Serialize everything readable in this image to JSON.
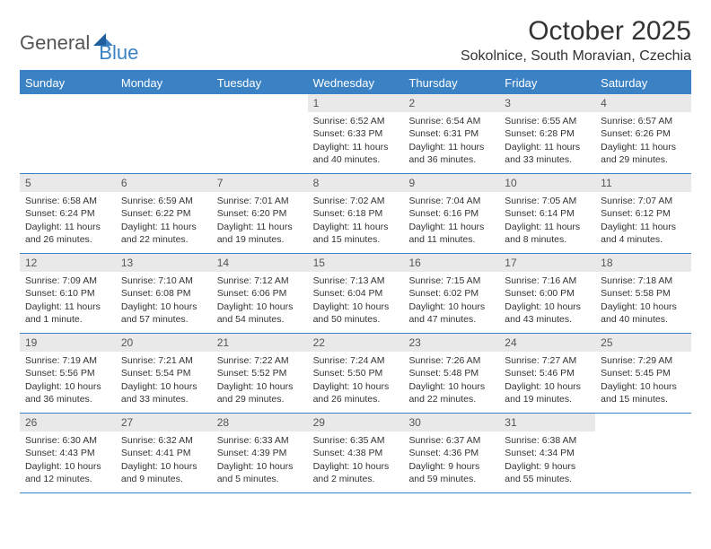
{
  "brand": {
    "part1": "General",
    "part2": "Blue"
  },
  "title": "October 2025",
  "location": "Sokolnice, South Moravian, Czechia",
  "colors": {
    "accent": "#3b82c4",
    "daynum_bg": "#e9e9e9",
    "text": "#333333",
    "bg": "#ffffff"
  },
  "typography": {
    "title_fontsize": 30,
    "location_fontsize": 16,
    "dayheader_fontsize": 13,
    "daynum_fontsize": 12,
    "cell_fontsize": 10.5
  },
  "day_names": [
    "Sunday",
    "Monday",
    "Tuesday",
    "Wednesday",
    "Thursday",
    "Friday",
    "Saturday"
  ],
  "weeks": [
    [
      {
        "n": "",
        "sr": "",
        "ss": "",
        "dl": ""
      },
      {
        "n": "",
        "sr": "",
        "ss": "",
        "dl": ""
      },
      {
        "n": "",
        "sr": "",
        "ss": "",
        "dl": ""
      },
      {
        "n": "1",
        "sr": "Sunrise: 6:52 AM",
        "ss": "Sunset: 6:33 PM",
        "dl": "Daylight: 11 hours and 40 minutes."
      },
      {
        "n": "2",
        "sr": "Sunrise: 6:54 AM",
        "ss": "Sunset: 6:31 PM",
        "dl": "Daylight: 11 hours and 36 minutes."
      },
      {
        "n": "3",
        "sr": "Sunrise: 6:55 AM",
        "ss": "Sunset: 6:28 PM",
        "dl": "Daylight: 11 hours and 33 minutes."
      },
      {
        "n": "4",
        "sr": "Sunrise: 6:57 AM",
        "ss": "Sunset: 6:26 PM",
        "dl": "Daylight: 11 hours and 29 minutes."
      }
    ],
    [
      {
        "n": "5",
        "sr": "Sunrise: 6:58 AM",
        "ss": "Sunset: 6:24 PM",
        "dl": "Daylight: 11 hours and 26 minutes."
      },
      {
        "n": "6",
        "sr": "Sunrise: 6:59 AM",
        "ss": "Sunset: 6:22 PM",
        "dl": "Daylight: 11 hours and 22 minutes."
      },
      {
        "n": "7",
        "sr": "Sunrise: 7:01 AM",
        "ss": "Sunset: 6:20 PM",
        "dl": "Daylight: 11 hours and 19 minutes."
      },
      {
        "n": "8",
        "sr": "Sunrise: 7:02 AM",
        "ss": "Sunset: 6:18 PM",
        "dl": "Daylight: 11 hours and 15 minutes."
      },
      {
        "n": "9",
        "sr": "Sunrise: 7:04 AM",
        "ss": "Sunset: 6:16 PM",
        "dl": "Daylight: 11 hours and 11 minutes."
      },
      {
        "n": "10",
        "sr": "Sunrise: 7:05 AM",
        "ss": "Sunset: 6:14 PM",
        "dl": "Daylight: 11 hours and 8 minutes."
      },
      {
        "n": "11",
        "sr": "Sunrise: 7:07 AM",
        "ss": "Sunset: 6:12 PM",
        "dl": "Daylight: 11 hours and 4 minutes."
      }
    ],
    [
      {
        "n": "12",
        "sr": "Sunrise: 7:09 AM",
        "ss": "Sunset: 6:10 PM",
        "dl": "Daylight: 11 hours and 1 minute."
      },
      {
        "n": "13",
        "sr": "Sunrise: 7:10 AM",
        "ss": "Sunset: 6:08 PM",
        "dl": "Daylight: 10 hours and 57 minutes."
      },
      {
        "n": "14",
        "sr": "Sunrise: 7:12 AM",
        "ss": "Sunset: 6:06 PM",
        "dl": "Daylight: 10 hours and 54 minutes."
      },
      {
        "n": "15",
        "sr": "Sunrise: 7:13 AM",
        "ss": "Sunset: 6:04 PM",
        "dl": "Daylight: 10 hours and 50 minutes."
      },
      {
        "n": "16",
        "sr": "Sunrise: 7:15 AM",
        "ss": "Sunset: 6:02 PM",
        "dl": "Daylight: 10 hours and 47 minutes."
      },
      {
        "n": "17",
        "sr": "Sunrise: 7:16 AM",
        "ss": "Sunset: 6:00 PM",
        "dl": "Daylight: 10 hours and 43 minutes."
      },
      {
        "n": "18",
        "sr": "Sunrise: 7:18 AM",
        "ss": "Sunset: 5:58 PM",
        "dl": "Daylight: 10 hours and 40 minutes."
      }
    ],
    [
      {
        "n": "19",
        "sr": "Sunrise: 7:19 AM",
        "ss": "Sunset: 5:56 PM",
        "dl": "Daylight: 10 hours and 36 minutes."
      },
      {
        "n": "20",
        "sr": "Sunrise: 7:21 AM",
        "ss": "Sunset: 5:54 PM",
        "dl": "Daylight: 10 hours and 33 minutes."
      },
      {
        "n": "21",
        "sr": "Sunrise: 7:22 AM",
        "ss": "Sunset: 5:52 PM",
        "dl": "Daylight: 10 hours and 29 minutes."
      },
      {
        "n": "22",
        "sr": "Sunrise: 7:24 AM",
        "ss": "Sunset: 5:50 PM",
        "dl": "Daylight: 10 hours and 26 minutes."
      },
      {
        "n": "23",
        "sr": "Sunrise: 7:26 AM",
        "ss": "Sunset: 5:48 PM",
        "dl": "Daylight: 10 hours and 22 minutes."
      },
      {
        "n": "24",
        "sr": "Sunrise: 7:27 AM",
        "ss": "Sunset: 5:46 PM",
        "dl": "Daylight: 10 hours and 19 minutes."
      },
      {
        "n": "25",
        "sr": "Sunrise: 7:29 AM",
        "ss": "Sunset: 5:45 PM",
        "dl": "Daylight: 10 hours and 15 minutes."
      }
    ],
    [
      {
        "n": "26",
        "sr": "Sunrise: 6:30 AM",
        "ss": "Sunset: 4:43 PM",
        "dl": "Daylight: 10 hours and 12 minutes."
      },
      {
        "n": "27",
        "sr": "Sunrise: 6:32 AM",
        "ss": "Sunset: 4:41 PM",
        "dl": "Daylight: 10 hours and 9 minutes."
      },
      {
        "n": "28",
        "sr": "Sunrise: 6:33 AM",
        "ss": "Sunset: 4:39 PM",
        "dl": "Daylight: 10 hours and 5 minutes."
      },
      {
        "n": "29",
        "sr": "Sunrise: 6:35 AM",
        "ss": "Sunset: 4:38 PM",
        "dl": "Daylight: 10 hours and 2 minutes."
      },
      {
        "n": "30",
        "sr": "Sunrise: 6:37 AM",
        "ss": "Sunset: 4:36 PM",
        "dl": "Daylight: 9 hours and 59 minutes."
      },
      {
        "n": "31",
        "sr": "Sunrise: 6:38 AM",
        "ss": "Sunset: 4:34 PM",
        "dl": "Daylight: 9 hours and 55 minutes."
      },
      {
        "n": "",
        "sr": "",
        "ss": "",
        "dl": ""
      }
    ]
  ]
}
